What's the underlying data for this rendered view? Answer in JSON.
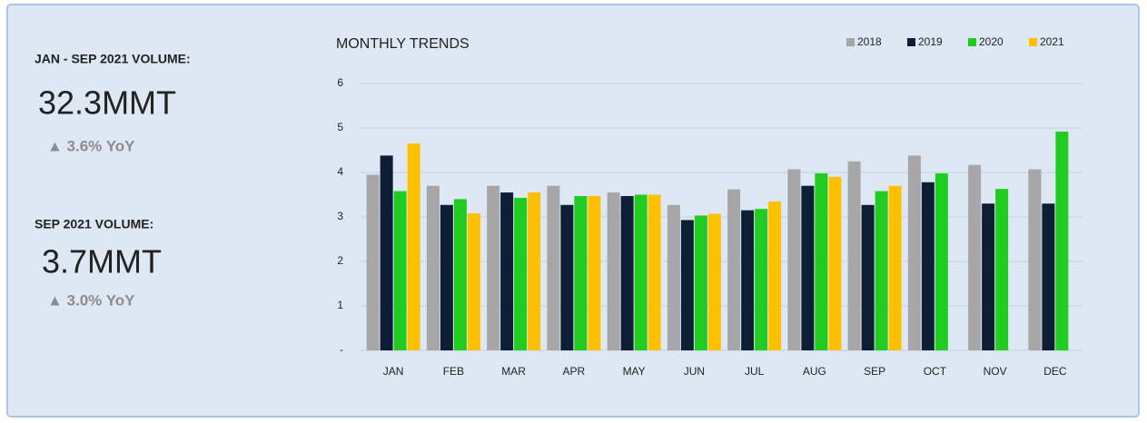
{
  "kpis": [
    {
      "label": "JAN - SEP 2021 VOLUME:",
      "value": "32.3MMT",
      "change": "▲ 3.6% YoY"
    },
    {
      "label": "SEP 2021 VOLUME:",
      "value": "3.7MMT",
      "change": "▲ 3.0% YoY"
    }
  ],
  "chart_data": {
    "type": "bar",
    "title": "MONTHLY TRENDS",
    "categories": [
      "JAN",
      "FEB",
      "MAR",
      "APR",
      "MAY",
      "JUN",
      "JUL",
      "AUG",
      "SEP",
      "OCT",
      "NOV",
      "DEC"
    ],
    "series": [
      {
        "name": "2018",
        "color": "#a6a6a6",
        "values": [
          3.95,
          3.7,
          3.7,
          3.7,
          3.55,
          3.27,
          3.62,
          4.07,
          4.25,
          4.38,
          4.17,
          4.07
        ]
      },
      {
        "name": "2019",
        "color": "#0d1e36",
        "values": [
          4.38,
          3.27,
          3.55,
          3.27,
          3.47,
          2.93,
          3.15,
          3.7,
          3.27,
          3.78,
          3.3,
          3.3
        ]
      },
      {
        "name": "2020",
        "color": "#1fcc1f",
        "values": [
          3.58,
          3.4,
          3.43,
          3.47,
          3.5,
          3.03,
          3.18,
          3.98,
          3.58,
          3.98,
          3.63,
          4.92
        ]
      },
      {
        "name": "2021",
        "color": "#ffc000",
        "values": [
          4.65,
          3.08,
          3.55,
          3.47,
          3.5,
          3.07,
          3.35,
          3.9,
          3.7,
          null,
          null,
          null
        ]
      }
    ],
    "ylim": [
      0,
      6
    ],
    "yticks": [
      {
        "value": 0,
        "label": "-"
      },
      1,
      2,
      3,
      4,
      5,
      6
    ],
    "grid": true,
    "legend": "top-right"
  }
}
